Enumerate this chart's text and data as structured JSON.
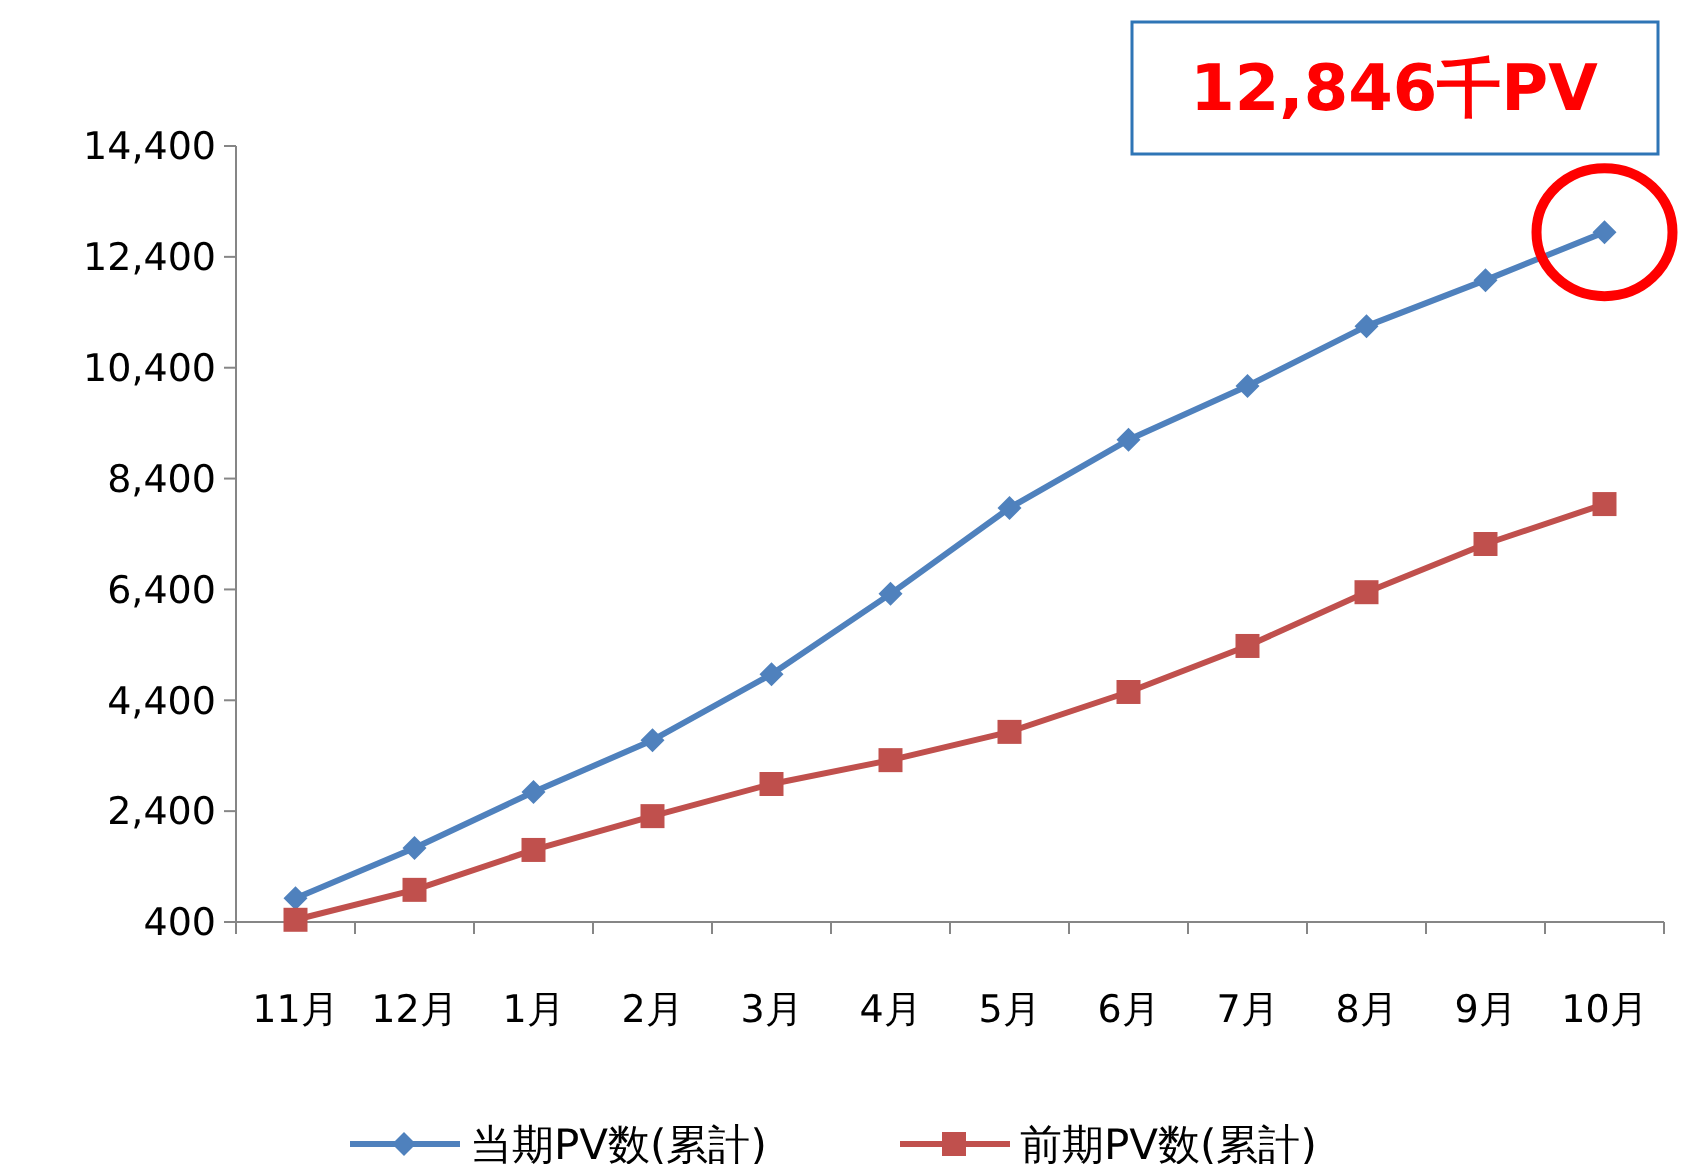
{
  "chart_data": {
    "type": "line",
    "categories": [
      "11月",
      "12月",
      "1月",
      "2月",
      "3月",
      "4月",
      "5月",
      "6月",
      "7月",
      "8月",
      "9月",
      "10月"
    ],
    "series": [
      {
        "name": "当期PV数(累計)",
        "color": "#4f81bd",
        "marker": "diamond",
        "values": [
          830,
          1735,
          2745,
          3680,
          4870,
          6320,
          7870,
          9100,
          10070,
          11150,
          11980,
          12846
        ]
      },
      {
        "name": "前期PV数(累計)",
        "color": "#c0504d",
        "marker": "square",
        "values": [
          440,
          980,
          1700,
          2310,
          2890,
          3320,
          3830,
          4550,
          5380,
          6350,
          7220,
          7940
        ]
      }
    ],
    "ylim": [
      400,
      14400
    ],
    "yticks": [
      {
        "value": 400,
        "label": "400"
      },
      {
        "value": 2400,
        "label": "2,400"
      },
      {
        "value": 4400,
        "label": "4,400"
      },
      {
        "value": 6400,
        "label": "6,400"
      },
      {
        "value": 8400,
        "label": "8,400"
      },
      {
        "value": 10400,
        "label": "10,400"
      },
      {
        "value": 12400,
        "label": "12,400"
      },
      {
        "value": 14400,
        "label": "14,400"
      }
    ],
    "grid": false,
    "legend": "bottom",
    "line_style": "solid",
    "annotations": [
      {
        "text": "12,846千PV",
        "x": "10月",
        "y": 12846
      }
    ]
  }
}
